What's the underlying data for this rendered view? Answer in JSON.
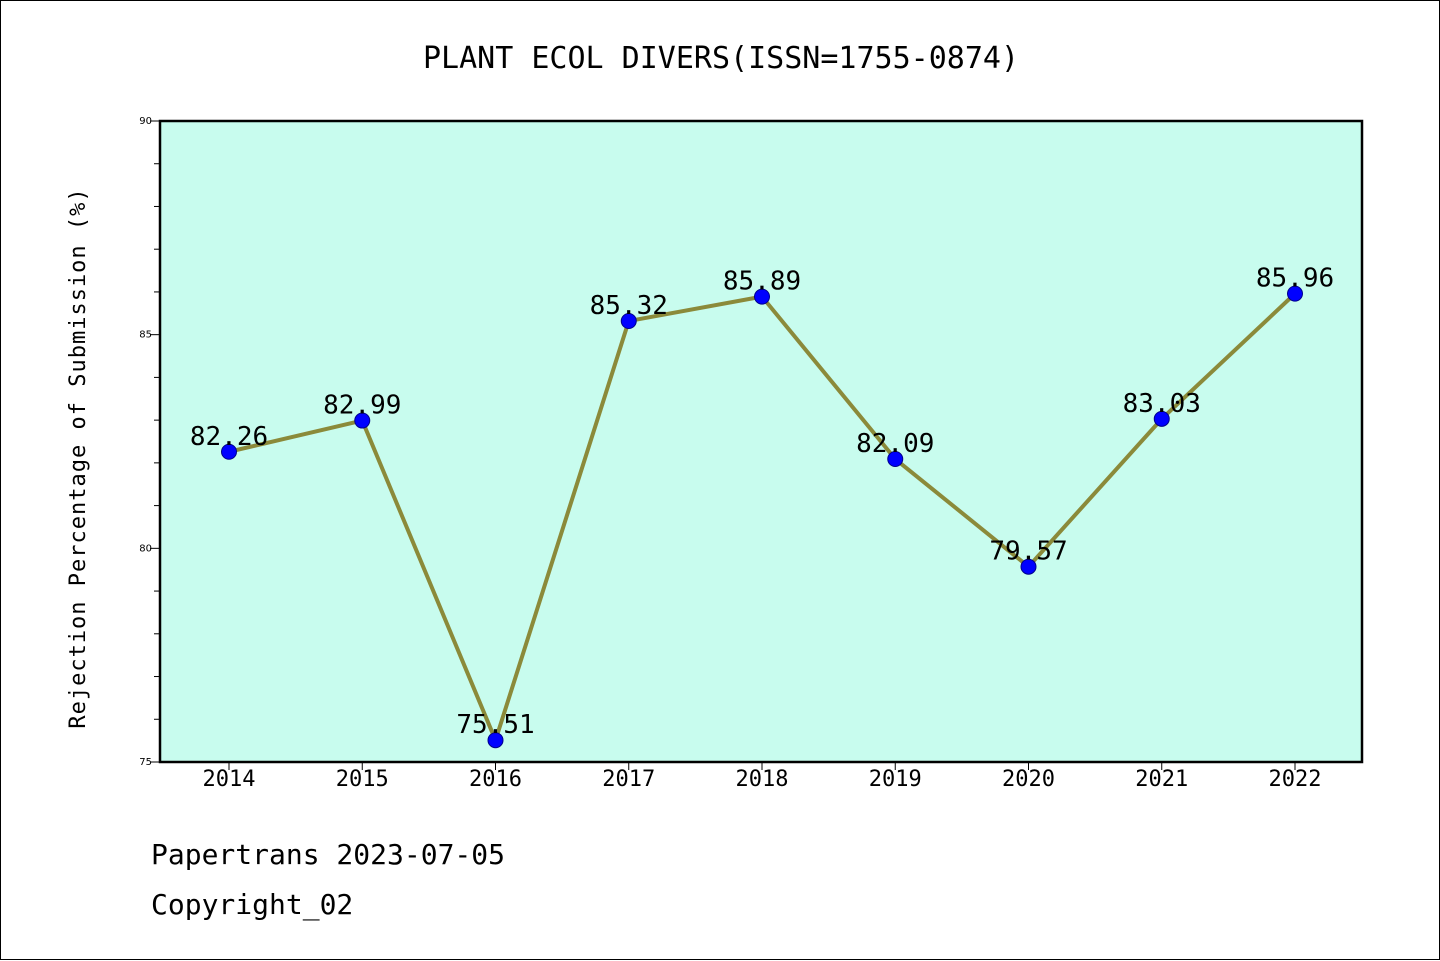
{
  "chart_data": {
    "type": "line",
    "title": "PLANT ECOL DIVERS(ISSN=1755-0874)",
    "xlabel": "",
    "ylabel": "Rejection Percentage of Submission (%)",
    "categories": [
      "2014",
      "2015",
      "2016",
      "2017",
      "2018",
      "2019",
      "2020",
      "2021",
      "2022"
    ],
    "series": [
      {
        "values": [
          82.26,
          82.99,
          75.51,
          85.32,
          85.89,
          82.09,
          79.57,
          83.03,
          85.96
        ],
        "labels": [
          "82.26",
          "82.99",
          "75.51",
          "85.32",
          "85.89",
          "82.09",
          "79.57",
          "83.03",
          "85.96"
        ]
      }
    ],
    "ylim": [
      75,
      90
    ],
    "yticks": [
      "75",
      "80",
      "85",
      "90"
    ],
    "grid": false,
    "legend": "none",
    "colors": {
      "plot_background": "#c8fcee",
      "line": "#8b8a3a",
      "marker": "#0000ff",
      "marker_edge": "#00008b",
      "axis": "#000000"
    }
  },
  "footer": {
    "line1": "Papertrans 2023-07-05",
    "line2": "Copyright_02"
  }
}
